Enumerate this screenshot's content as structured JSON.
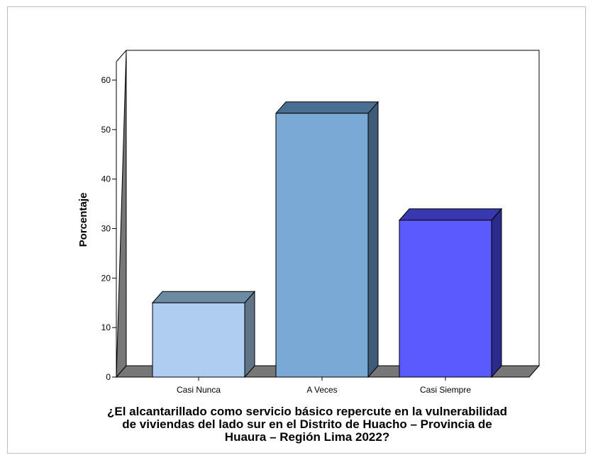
{
  "chart_data": {
    "type": "bar",
    "categories": [
      "Casi Nunca",
      "A Veces",
      "Casi Siempre"
    ],
    "values": [
      15.0,
      53.3,
      31.7
    ],
    "colors": [
      "#aecdf0",
      "#7aa9d6",
      "#5a5aff"
    ],
    "side_colors": [
      "#5f7587",
      "#3f5b78",
      "#2b2b8c"
    ],
    "top_colors": [
      "#6d8aa3",
      "#4b6f92",
      "#3838b0"
    ],
    "title": "",
    "xlabel": "¿El alcantarillado como servicio básico repercute en la vulnerabilidad de viviendas del lado sur en el Distrito de Huacho – Provincia de Huaura – Región Lima 2022?",
    "ylabel": "Porcentaje",
    "ylim": [
      0,
      60
    ],
    "yticks": [
      0,
      10,
      20,
      30,
      40,
      50,
      60
    ],
    "grid": false,
    "style": "3d"
  }
}
